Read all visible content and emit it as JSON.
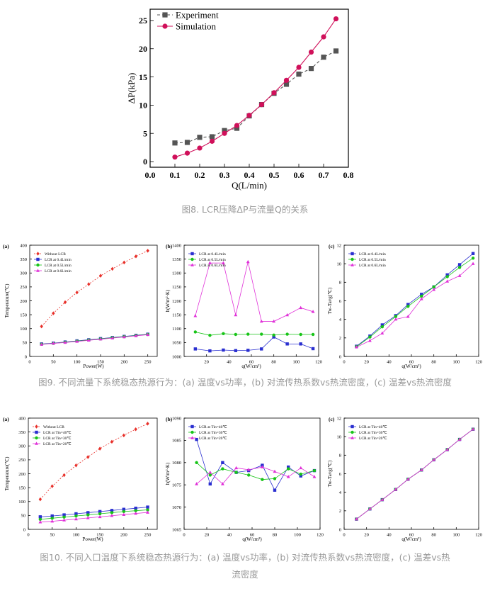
{
  "captions": {
    "fig8": "图8. LCR压降ΔP与流量Q的关系",
    "fig9": "图9. 不同流量下系统稳态热源行为：(a) 温度vs功率，(b) 对流传热系数vs热流密度，(c) 温差vs热流密度",
    "fig10_line1": "图10. 不同入口温度下系统稳态热源行为：(a) 温度vs功率，(b) 对流传热系数vs热流密度，(c) 温差vs热",
    "fig10_line2": "流密度"
  },
  "colors": {
    "black": "#000000",
    "gray": "#555555",
    "crimson": "#d0105a",
    "red": "#e8302a",
    "blue": "#2a2fd0",
    "green": "#18c418",
    "magenta": "#e030d8",
    "purple": "#7a4aa0"
  },
  "chart_data": [
    {
      "id": "fig8",
      "type": "line",
      "title": "",
      "xlabel": "Q(L/min)",
      "ylabel": "ΔP(kPa)",
      "xlim": [
        0.0,
        0.8
      ],
      "ylim": [
        -1,
        27
      ],
      "xticks": [
        0.0,
        0.1,
        0.2,
        0.3,
        0.4,
        0.5,
        0.6,
        0.7,
        0.8
      ],
      "xtick_labels": [
        "0.0",
        "0.1",
        "0.2",
        "0.3",
        "0.4",
        "0.5",
        "0.6",
        "0.7",
        "0.8"
      ],
      "yticks": [
        0,
        5,
        10,
        15,
        20,
        25
      ],
      "ytick_labels": [
        "0",
        "5",
        "10",
        "15",
        "20",
        "25"
      ],
      "legend_position": "top-left",
      "grid": false,
      "series": [
        {
          "name": "Experiment",
          "color": "#555555",
          "marker": "square",
          "dashed": true,
          "x": [
            0.1,
            0.15,
            0.2,
            0.25,
            0.3,
            0.35,
            0.4,
            0.45,
            0.5,
            0.55,
            0.6,
            0.65,
            0.7,
            0.75
          ],
          "y": [
            3.3,
            3.4,
            4.3,
            4.4,
            5.5,
            5.9,
            8.1,
            10.1,
            12.1,
            13.7,
            15.5,
            16.5,
            18.5,
            19.6
          ]
        },
        {
          "name": "Simulation",
          "color": "#d0105a",
          "marker": "circle",
          "dashed": false,
          "x": [
            0.1,
            0.15,
            0.2,
            0.25,
            0.3,
            0.35,
            0.4,
            0.45,
            0.5,
            0.55,
            0.6,
            0.65,
            0.7,
            0.75
          ],
          "y": [
            0.8,
            1.5,
            2.4,
            3.6,
            5.0,
            6.4,
            8.2,
            10.1,
            12.2,
            14.4,
            16.7,
            19.4,
            22.1,
            25.3
          ]
        }
      ]
    },
    {
      "id": "fig9a",
      "type": "line",
      "panel_label": "(a)",
      "title": "",
      "xlabel": "Power(W)",
      "ylabel": "Temperature(℃)",
      "xlim": [
        0,
        270
      ],
      "ylim": [
        0,
        400
      ],
      "xticks": [
        0,
        50,
        100,
        150,
        200,
        250
      ],
      "xtick_labels": [
        "0",
        "50",
        "100",
        "150",
        "200",
        "250"
      ],
      "yticks": [
        0,
        50,
        100,
        150,
        200,
        250,
        300,
        350,
        400
      ],
      "ytick_labels": [
        "0",
        "50",
        "100",
        "150",
        "200",
        "250",
        "300",
        "350",
        "400"
      ],
      "legend_position": "top-left",
      "series": [
        {
          "name": "Without LCR",
          "color": "#e8302a",
          "marker": "diamond",
          "dashed": true,
          "x": [
            25,
            50,
            75,
            100,
            125,
            150,
            175,
            200,
            225,
            250
          ],
          "y": [
            108,
            155,
            195,
            230,
            260,
            290,
            315,
            338,
            360,
            380
          ]
        },
        {
          "name": "LCR at 0.4L/min",
          "color": "#2a2fd0",
          "marker": "square",
          "dashed": false,
          "x": [
            25,
            50,
            75,
            100,
            125,
            150,
            175,
            200,
            225,
            250
          ],
          "y": [
            45,
            48,
            52,
            56,
            60,
            64,
            68,
            72,
            76,
            80
          ]
        },
        {
          "name": "LCR at 0.5L/min",
          "color": "#18c418",
          "marker": "circle",
          "dashed": false,
          "x": [
            25,
            50,
            75,
            100,
            125,
            150,
            175,
            200,
            225,
            250
          ],
          "y": [
            44,
            47,
            51,
            55,
            59,
            63,
            67,
            71,
            75,
            79
          ]
        },
        {
          "name": "LCR at 0.6L/min",
          "color": "#e030d8",
          "marker": "triangle",
          "dashed": false,
          "x": [
            25,
            50,
            75,
            100,
            125,
            150,
            175,
            200,
            225,
            250
          ],
          "y": [
            43,
            47,
            50,
            54,
            58,
            62,
            66,
            70,
            74,
            78
          ]
        }
      ]
    },
    {
      "id": "fig9b",
      "type": "line",
      "panel_label": "(b)",
      "title": "",
      "xlabel": "q(W/cm²)",
      "ylabel": "h(W/m²·K)",
      "xlim": [
        0,
        120
      ],
      "ylim": [
        1000,
        1400
      ],
      "xticks": [
        20,
        40,
        60,
        80,
        100,
        120
      ],
      "xtick_labels": [
        "20",
        "40",
        "60",
        "80",
        "100",
        "120"
      ],
      "yticks": [
        1000,
        1050,
        1100,
        1150,
        1200,
        1250,
        1300,
        1350,
        1400
      ],
      "ytick_labels": [
        "1000",
        "1050",
        "1100",
        "1150",
        "1200",
        "1250",
        "1300",
        "1350",
        "1400"
      ],
      "legend_position": "top-left",
      "series": [
        {
          "name": "LCR at 0.4L/min",
          "color": "#2a2fd0",
          "marker": "square",
          "dashed": false,
          "x": [
            10,
            23,
            35,
            46,
            57,
            69,
            80,
            92,
            104,
            115
          ],
          "y": [
            1027,
            1020,
            1023,
            1021,
            1022,
            1027,
            1070,
            1045,
            1045,
            1028
          ]
        },
        {
          "name": "LCR at 0.5L/min",
          "color": "#18c418",
          "marker": "circle",
          "dashed": false,
          "x": [
            10,
            23,
            35,
            46,
            57,
            69,
            80,
            92,
            104,
            115
          ],
          "y": [
            1088,
            1076,
            1082,
            1079,
            1080,
            1080,
            1077,
            1080,
            1079,
            1079
          ]
        },
        {
          "name": "LCR at 0.6L/min",
          "color": "#e030d8",
          "marker": "triangle",
          "dashed": false,
          "x": [
            10,
            23,
            35,
            46,
            57,
            69,
            80,
            92,
            104,
            115
          ],
          "y": [
            1146,
            1336,
            1336,
            1149,
            1340,
            1126,
            1126,
            1149,
            1175,
            1161
          ]
        }
      ]
    },
    {
      "id": "fig9c",
      "type": "line",
      "panel_label": "(c)",
      "title": "",
      "xlabel": "q(W/cm²)",
      "ylabel": "Tw-Tavg(℃)",
      "xlim": [
        0,
        120
      ],
      "ylim": [
        0,
        12
      ],
      "xticks": [
        0,
        20,
        40,
        60,
        80,
        100,
        120
      ],
      "xtick_labels": [
        "0",
        "20",
        "40",
        "60",
        "80",
        "100",
        "120"
      ],
      "yticks": [
        0,
        2,
        4,
        6,
        8,
        10,
        12
      ],
      "ytick_labels": [
        "0",
        "2",
        "4",
        "6",
        "8",
        "10",
        "12"
      ],
      "legend_position": "top-left",
      "series": [
        {
          "name": "LCR at 0.4L/min",
          "color": "#2a2fd0",
          "marker": "square",
          "dashed": false,
          "x": [
            11,
            23,
            34,
            46,
            57,
            69,
            80,
            92,
            103,
            115
          ],
          "y": [
            1.1,
            2.2,
            3.4,
            4.4,
            5.6,
            6.7,
            7.5,
            8.8,
            9.9,
            11.1
          ]
        },
        {
          "name": "LCR at 0.5L/min",
          "color": "#18c418",
          "marker": "circle",
          "dashed": false,
          "x": [
            11,
            23,
            34,
            46,
            57,
            69,
            80,
            92,
            103,
            115
          ],
          "y": [
            1.05,
            2.1,
            3.2,
            4.3,
            5.4,
            6.5,
            7.5,
            8.6,
            9.6,
            10.6
          ]
        },
        {
          "name": "LCR at 0.6L/min",
          "color": "#e030d8",
          "marker": "triangle",
          "dashed": false,
          "x": [
            11,
            23,
            34,
            46,
            57,
            69,
            80,
            92,
            103,
            115
          ],
          "y": [
            1.0,
            1.7,
            2.5,
            4.0,
            4.3,
            6.2,
            7.2,
            8.1,
            8.7,
            10.0
          ]
        }
      ]
    },
    {
      "id": "fig10a",
      "type": "line",
      "panel_label": "(a)",
      "title": "",
      "xlabel": "Power(W)",
      "ylabel": "Temperature(℃)",
      "xlim": [
        0,
        270
      ],
      "ylim": [
        0,
        400
      ],
      "xticks": [
        0,
        50,
        100,
        150,
        200,
        250
      ],
      "xtick_labels": [
        "0",
        "50",
        "100",
        "150",
        "200",
        "250"
      ],
      "yticks": [
        0,
        50,
        100,
        150,
        200,
        250,
        300,
        350,
        400
      ],
      "ytick_labels": [
        "0",
        "50",
        "100",
        "150",
        "200",
        "250",
        "300",
        "350",
        "400"
      ],
      "legend_position": "top-left",
      "series": [
        {
          "name": "Without LCR",
          "color": "#e8302a",
          "marker": "diamond",
          "dashed": true,
          "x": [
            25,
            50,
            75,
            100,
            125,
            150,
            175,
            200,
            225,
            250
          ],
          "y": [
            108,
            155,
            195,
            230,
            260,
            290,
            315,
            338,
            360,
            380
          ]
        },
        {
          "name": "LCR at Tin=40℃",
          "color": "#2a2fd0",
          "marker": "square",
          "dashed": false,
          "x": [
            25,
            50,
            75,
            100,
            125,
            150,
            175,
            200,
            225,
            250
          ],
          "y": [
            45,
            48,
            52,
            56,
            60,
            64,
            68,
            72,
            76,
            80
          ]
        },
        {
          "name": "LCR at Tin=30℃",
          "color": "#18c418",
          "marker": "circle",
          "dashed": false,
          "x": [
            25,
            50,
            75,
            100,
            125,
            150,
            175,
            200,
            225,
            250
          ],
          "y": [
            36,
            40,
            44,
            48,
            52,
            56,
            60,
            64,
            67,
            70
          ]
        },
        {
          "name": "LCR at Tin=20℃",
          "color": "#e030d8",
          "marker": "triangle",
          "dashed": false,
          "x": [
            25,
            50,
            75,
            100,
            125,
            150,
            175,
            200,
            225,
            250
          ],
          "y": [
            26,
            29,
            33,
            37,
            41,
            45,
            49,
            53,
            57,
            61
          ]
        }
      ]
    },
    {
      "id": "fig10b",
      "type": "line",
      "panel_label": "(b)",
      "title": "",
      "xlabel": "q(W/cm²)",
      "ylabel": "h(W/m²·K)",
      "xlim": [
        0,
        120
      ],
      "ylim": [
        1065,
        1090
      ],
      "xticks": [
        0,
        20,
        40,
        60,
        80,
        100,
        120
      ],
      "xtick_labels": [
        "0",
        "20",
        "40",
        "60",
        "80",
        "100",
        "120"
      ],
      "yticks": [
        1065,
        1070,
        1075,
        1080,
        1085,
        1090
      ],
      "ytick_labels": [
        "1065",
        "1070",
        "1075",
        "1080",
        "1085",
        "1090"
      ],
      "legend_position": "top-left",
      "series": [
        {
          "name": "LCR at Tin=40℃",
          "color": "#2a2fd0",
          "marker": "square",
          "dashed": false,
          "x": [
            11,
            23,
            34,
            46,
            57,
            69,
            80,
            92,
            103,
            115
          ],
          "y": [
            1085.2,
            1075.2,
            1080.0,
            1077.8,
            1078.2,
            1079.4,
            1073.8,
            1079.0,
            1077.0,
            1078.2
          ]
        },
        {
          "name": "LCR at Tin=30℃",
          "color": "#18c418",
          "marker": "circle",
          "dashed": false,
          "x": [
            11,
            23,
            34,
            46,
            57,
            69,
            80,
            92,
            103,
            115
          ],
          "y": [
            1080.0,
            1077.2,
            1078.6,
            1077.8,
            1077.2,
            1076.2,
            1076.4,
            1078.6,
            1077.4,
            1078.2
          ]
        },
        {
          "name": "LCR at Tin=20℃",
          "color": "#e030d8",
          "marker": "triangle",
          "dashed": false,
          "x": [
            11,
            23,
            34,
            46,
            57,
            69,
            80,
            92,
            103,
            115
          ],
          "y": [
            1075.2,
            1077.8,
            1075.2,
            1078.8,
            1078.4,
            1079.0,
            1078.0,
            1076.8,
            1078.8,
            1076.8
          ]
        }
      ]
    },
    {
      "id": "fig10c",
      "type": "line",
      "panel_label": "(c)",
      "title": "",
      "xlabel": "q(W/cm²)",
      "ylabel": "Tw-Tavg(℃)",
      "xlim": [
        0,
        120
      ],
      "ylim": [
        0,
        12
      ],
      "xticks": [
        0,
        20,
        40,
        60,
        80,
        100,
        120
      ],
      "xtick_labels": [
        "0",
        "20",
        "40",
        "60",
        "80",
        "100",
        "120"
      ],
      "yticks": [
        0,
        2,
        4,
        6,
        8,
        10,
        12
      ],
      "ytick_labels": [
        "0",
        "2",
        "4",
        "6",
        "8",
        "10",
        "12"
      ],
      "legend_position": "top-left",
      "series": [
        {
          "name": "LCR at Tin=40℃",
          "color": "#2a2fd0",
          "marker": "square",
          "dashed": false,
          "x": [
            11,
            23,
            34,
            46,
            57,
            69,
            80,
            92,
            103,
            115
          ],
          "y": [
            1.1,
            2.2,
            3.2,
            4.3,
            5.4,
            6.4,
            7.5,
            8.6,
            9.7,
            10.8
          ]
        },
        {
          "name": "LCR at Tin=30℃",
          "color": "#18c418",
          "marker": "circle",
          "dashed": false,
          "x": [
            11,
            23,
            34,
            46,
            57,
            69,
            80,
            92,
            103,
            115
          ],
          "y": [
            1.1,
            2.2,
            3.2,
            4.3,
            5.4,
            6.4,
            7.5,
            8.6,
            9.7,
            10.8
          ]
        },
        {
          "name": "LCR at Tin=20℃",
          "color": "#e030d8",
          "marker": "triangle",
          "dashed": false,
          "x": [
            11,
            23,
            34,
            46,
            57,
            69,
            80,
            92,
            103,
            115
          ],
          "y": [
            1.1,
            2.2,
            3.2,
            4.3,
            5.4,
            6.4,
            7.5,
            8.6,
            9.7,
            10.8
          ]
        }
      ]
    }
  ]
}
